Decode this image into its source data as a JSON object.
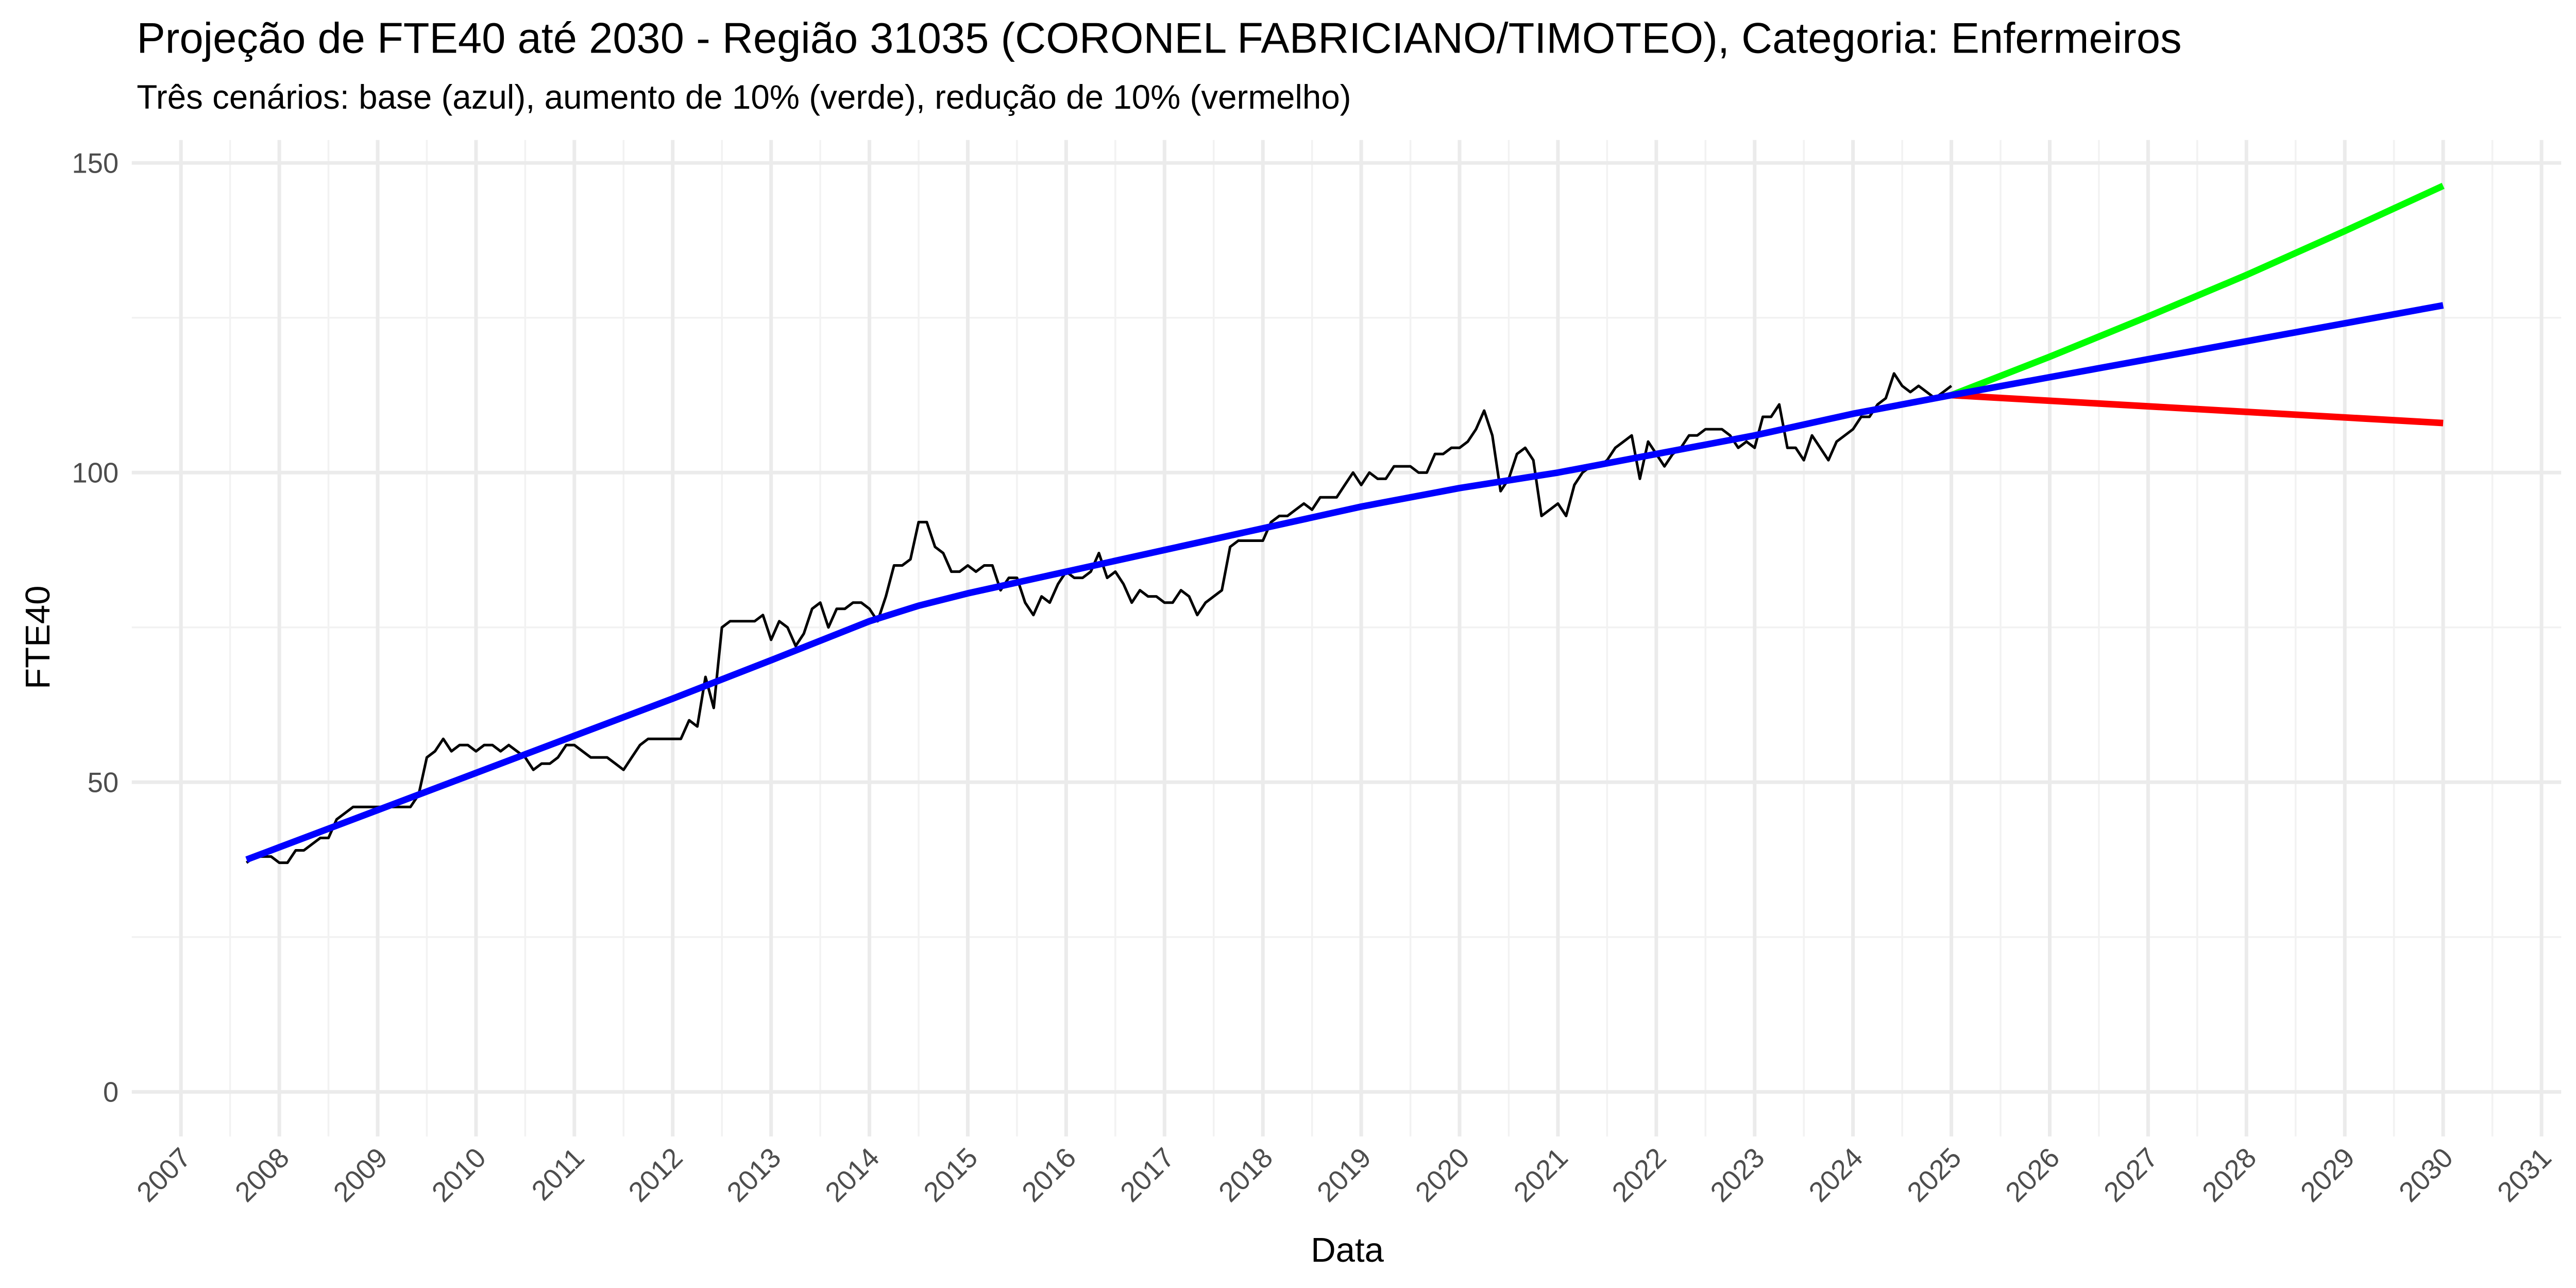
{
  "chart_data": {
    "type": "line",
    "title": "Projeção de FTE40 até 2030 - Região 31035 (CORONEL FABRICIANO/TIMOTEO), Categoria: Enfermeiros",
    "subtitle": "Três cenários: base (azul), aumento de 10% (verde), redução de 10% (vermelho)",
    "xlabel": "Data",
    "ylabel": "FTE40",
    "xlim": [
      2006.5,
      2031.2
    ],
    "xticks": [
      2007,
      2008,
      2009,
      2010,
      2011,
      2012,
      2013,
      2014,
      2015,
      2016,
      2017,
      2018,
      2019,
      2020,
      2021,
      2022,
      2023,
      2024,
      2025,
      2026,
      2027,
      2028,
      2029,
      2030,
      2031
    ],
    "ylim": [
      -7.2,
      153.7
    ],
    "yticks": [
      0,
      50,
      100,
      150
    ],
    "grid": true,
    "series": [
      {
        "color": "#000000",
        "width": 1.6,
        "x": [
          2007.667,
          2007.75,
          2007.833,
          2007.917,
          2008,
          2008.083,
          2008.167,
          2008.25,
          2008.333,
          2008.417,
          2008.5,
          2008.583,
          2008.667,
          2008.75,
          2008.833,
          2008.917,
          2009,
          2009.083,
          2009.167,
          2009.25,
          2009.333,
          2009.417,
          2009.5,
          2009.583,
          2009.667,
          2009.75,
          2009.833,
          2009.917,
          2010,
          2010.083,
          2010.167,
          2010.25,
          2010.333,
          2010.417,
          2010.5,
          2010.583,
          2010.667,
          2010.75,
          2010.833,
          2010.917,
          2011,
          2011.083,
          2011.167,
          2011.25,
          2011.333,
          2011.417,
          2011.5,
          2011.583,
          2011.667,
          2011.75,
          2011.833,
          2011.917,
          2012,
          2012.083,
          2012.167,
          2012.25,
          2012.333,
          2012.417,
          2012.5,
          2012.583,
          2012.667,
          2012.75,
          2012.833,
          2012.917,
          2013,
          2013.083,
          2013.167,
          2013.25,
          2013.333,
          2013.417,
          2013.5,
          2013.583,
          2013.667,
          2013.75,
          2013.833,
          2013.917,
          2014,
          2014.083,
          2014.167,
          2014.25,
          2014.333,
          2014.417,
          2014.5,
          2014.583,
          2014.667,
          2014.75,
          2014.833,
          2014.917,
          2015,
          2015.083,
          2015.167,
          2015.25,
          2015.333,
          2015.417,
          2015.5,
          2015.583,
          2015.667,
          2015.75,
          2015.833,
          2015.917,
          2016,
          2016.083,
          2016.167,
          2016.25,
          2016.333,
          2016.417,
          2016.5,
          2016.583,
          2016.667,
          2016.75,
          2016.833,
          2016.917,
          2017,
          2017.083,
          2017.167,
          2017.25,
          2017.333,
          2017.417,
          2017.5,
          2017.583,
          2017.667,
          2017.75,
          2017.833,
          2017.917,
          2018,
          2018.083,
          2018.167,
          2018.25,
          2018.333,
          2018.417,
          2018.5,
          2018.583,
          2018.667,
          2018.75,
          2018.833,
          2018.917,
          2019,
          2019.083,
          2019.167,
          2019.25,
          2019.333,
          2019.417,
          2019.5,
          2019.583,
          2019.667,
          2019.75,
          2019.833,
          2019.917,
          2020,
          2020.083,
          2020.167,
          2020.25,
          2020.333,
          2020.417,
          2020.5,
          2020.583,
          2020.667,
          2020.75,
          2020.833,
          2020.917,
          2021,
          2021.083,
          2021.167,
          2021.25,
          2021.333,
          2021.417,
          2021.5,
          2021.583,
          2021.667,
          2021.75,
          2021.833,
          2021.917,
          2022,
          2022.083,
          2022.167,
          2022.25,
          2022.333,
          2022.417,
          2022.5,
          2022.583,
          2022.667,
          2022.75,
          2022.833,
          2022.917,
          2023,
          2023.083,
          2023.167,
          2023.25,
          2023.333,
          2023.417,
          2023.5,
          2023.583,
          2023.667,
          2023.75,
          2023.833,
          2023.917,
          2024,
          2024.083,
          2024.167,
          2024.25,
          2024.333,
          2024.417,
          2024.5,
          2024.583,
          2024.667,
          2024.75,
          2024.833,
          2024.917,
          2025
        ],
        "values": [
          37,
          38,
          38,
          38,
          37,
          37,
          39,
          39,
          40,
          41,
          41,
          44,
          45,
          46,
          46,
          46,
          46,
          46,
          46,
          46,
          46,
          48,
          54,
          55,
          57,
          55,
          56,
          56,
          55,
          56,
          56,
          55,
          56,
          55,
          54,
          52,
          53,
          53,
          54,
          56,
          56,
          55,
          54,
          54,
          54,
          53,
          52,
          54,
          56,
          57,
          57,
          57,
          57,
          57,
          60,
          59,
          67,
          62,
          75,
          76,
          76,
          76,
          76,
          77,
          73,
          76,
          75,
          72,
          74,
          78,
          79,
          75,
          78,
          78,
          79,
          79,
          78,
          76,
          80,
          85,
          85,
          86,
          92,
          92,
          88,
          87,
          84,
          84,
          85,
          84,
          85,
          85,
          81,
          83,
          83,
          79,
          77,
          80,
          79,
          82,
          84,
          83,
          83,
          84,
          87,
          83,
          84,
          82,
          79,
          81,
          80,
          80,
          79,
          79,
          81,
          80,
          77,
          79,
          80,
          81,
          88,
          89,
          89,
          89,
          89,
          92,
          93,
          93,
          94,
          95,
          94,
          96,
          96,
          96,
          98,
          100,
          98,
          100,
          99,
          99,
          101,
          101,
          101,
          100,
          100,
          103,
          103,
          104,
          104,
          105,
          107,
          110,
          106,
          97,
          99,
          103,
          104,
          102,
          93,
          94,
          95,
          93,
          98,
          100,
          101,
          101,
          102,
          104,
          105,
          106,
          99,
          105,
          103,
          101,
          103,
          104,
          106,
          106,
          107,
          107,
          107,
          106,
          104,
          105,
          104,
          109,
          109,
          111,
          104,
          104,
          102,
          106,
          104,
          102,
          105,
          106,
          107,
          109,
          109,
          111,
          112,
          116,
          114,
          113,
          114,
          113,
          112,
          113,
          114
        ]
      },
      {
        "color": "#00ff00",
        "width": 4,
        "x": [
          2025,
          2026,
          2027,
          2028,
          2029,
          2030
        ],
        "values": [
          112.5,
          118.7,
          125.2,
          131.9,
          139,
          146.3
        ]
      },
      {
        "color": "#ff0000",
        "width": 4,
        "x": [
          2025,
          2030
        ],
        "values": [
          112.5,
          108
        ]
      },
      {
        "color": "#0000ff",
        "width": 4,
        "x": [
          2007.667,
          2008,
          2009,
          2010,
          2011,
          2012,
          2013,
          2014,
          2014.5,
          2015,
          2016,
          2017,
          2018,
          2019,
          2020,
          2021,
          2022,
          2023,
          2024,
          2025,
          2026,
          2027,
          2028,
          2029,
          2030
        ],
        "values": [
          37.5,
          39.5,
          45.5,
          51.5,
          57.5,
          63.5,
          69.7,
          76,
          78.5,
          80.5,
          84,
          87.5,
          91,
          94.5,
          97.5,
          100,
          103,
          106,
          109.5,
          112.5,
          115.4,
          118.3,
          121.2,
          124.1,
          127
        ]
      }
    ]
  }
}
